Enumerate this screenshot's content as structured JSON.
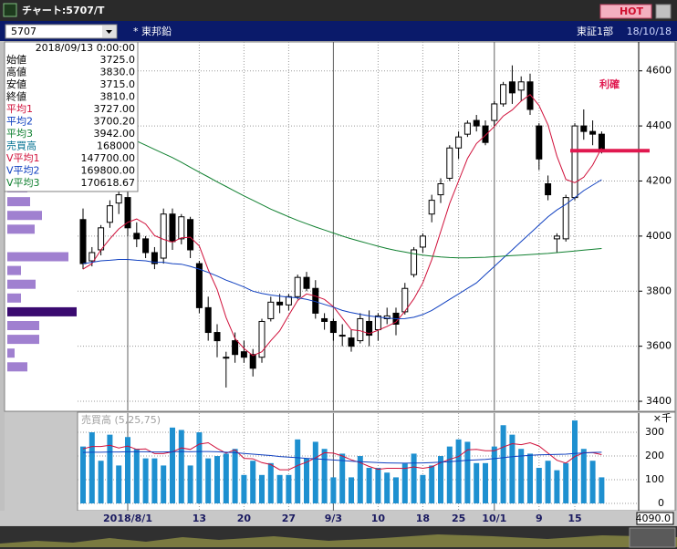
{
  "window": {
    "title": "チャート:5707/T",
    "hot_button": "HOT"
  },
  "toolbar": {
    "code": "5707",
    "name": "* 東邦鉛",
    "market": "東証1部",
    "date": "18/10/18"
  },
  "info_panel": {
    "date": "2018/09/13 0:00:00",
    "rows": [
      {
        "label": "始値",
        "value": "3725.0",
        "color": "#000000"
      },
      {
        "label": "高値",
        "value": "3830.0",
        "color": "#000000"
      },
      {
        "label": "安値",
        "value": "3715.0",
        "color": "#000000"
      },
      {
        "label": "終値",
        "value": "3810.0",
        "color": "#000000"
      },
      {
        "label": "平均1",
        "value": "3727.00",
        "color": "#d0103a"
      },
      {
        "label": "平均2",
        "value": "3700.20",
        "color": "#1040c0"
      },
      {
        "label": "平均3",
        "value": "3942.00",
        "color": "#108030"
      },
      {
        "label": "売買高",
        "value": "168000",
        "color": "#007090"
      },
      {
        "label": "V平均1",
        "value": "147700.00",
        "color": "#d0103a"
      },
      {
        "label": "V平均2",
        "value": "169800.00",
        "color": "#1040c0"
      },
      {
        "label": "V平均3",
        "value": "170618.67",
        "color": "#108030"
      }
    ]
  },
  "chart_data": {
    "type": "candlestick",
    "categories": [
      null,
      null,
      null,
      null,
      null,
      "2018/8/1",
      null,
      null,
      null,
      null,
      null,
      null,
      null,
      "13",
      null,
      null,
      null,
      null,
      "20",
      null,
      null,
      null,
      null,
      "27",
      null,
      null,
      null,
      null,
      "9/3",
      null,
      null,
      null,
      null,
      "10",
      null,
      null,
      null,
      null,
      "18",
      null,
      null,
      null,
      "25",
      null,
      null,
      null,
      "10/1",
      null,
      null,
      null,
      null,
      "9",
      null,
      null,
      null,
      "15",
      null,
      null,
      null
    ],
    "open": [
      4060,
      3910,
      3950,
      4050,
      4120,
      4140,
      4010,
      3990,
      3940,
      3920,
      4080,
      3990,
      4060,
      3900,
      3740,
      3650,
      3560,
      3620,
      3580,
      3570,
      3560,
      3700,
      3760,
      3750,
      3780,
      3850,
      3810,
      3700,
      3690,
      3640,
      3630,
      3620,
      3690,
      3660,
      3700,
      3720,
      3725,
      3860,
      3960,
      4080,
      4150,
      4210,
      4320,
      4370,
      4420,
      4400,
      4420,
      4480,
      4560,
      4530,
      4560,
      4400,
      4190,
      3990,
      3990,
      4140,
      4400,
      4380,
      4370
    ],
    "high": [
      4100,
      3960,
      4040,
      4130,
      4180,
      4190,
      4050,
      4000,
      3960,
      4100,
      4100,
      4080,
      4070,
      3910,
      3780,
      3680,
      3580,
      3650,
      3620,
      3590,
      3700,
      3780,
      3790,
      3790,
      3860,
      3870,
      3840,
      3720,
      3700,
      3680,
      3660,
      3720,
      3730,
      3720,
      3740,
      3740,
      3830,
      3960,
      4010,
      4150,
      4210,
      4330,
      4380,
      4420,
      4440,
      4420,
      4490,
      4560,
      4620,
      4580,
      4590,
      4410,
      4220,
      4010,
      4150,
      4410,
      4460,
      4420,
      4380
    ],
    "low": [
      3880,
      3890,
      3930,
      4030,
      4080,
      4000,
      3960,
      3920,
      3880,
      3900,
      3950,
      3970,
      3920,
      3720,
      3620,
      3560,
      3450,
      3540,
      3540,
      3490,
      3540,
      3690,
      3720,
      3730,
      3770,
      3800,
      3700,
      3660,
      3620,
      3600,
      3580,
      3610,
      3600,
      3620,
      3680,
      3640,
      3715,
      3850,
      3940,
      4050,
      4120,
      4200,
      4280,
      4360,
      4380,
      4330,
      4400,
      4470,
      4480,
      4490,
      4440,
      4240,
      4130,
      3940,
      3980,
      4130,
      4350,
      4330,
      4300
    ],
    "close": [
      3900,
      3940,
      4030,
      4110,
      4150,
      4030,
      3990,
      3940,
      3900,
      4080,
      3980,
      4070,
      3950,
      3740,
      3650,
      3620,
      3560,
      3570,
      3560,
      3520,
      3690,
      3760,
      3750,
      3780,
      3850,
      3810,
      3720,
      3690,
      3650,
      3640,
      3600,
      3700,
      3640,
      3710,
      3710,
      3680,
      3810,
      3950,
      4000,
      4130,
      4190,
      4320,
      4360,
      4410,
      4400,
      4340,
      4480,
      4550,
      4520,
      4560,
      4460,
      4280,
      4150,
      4000,
      4140,
      4400,
      4380,
      4370,
      4310
    ],
    "moving_averages": [
      {
        "color": "#d0103a",
        "values": [
          3880,
          3900,
          3950,
          3990,
          4026,
          4050,
          4062,
          4044,
          4002,
          3988,
          3978,
          3994,
          3996,
          3964,
          3878,
          3806,
          3704,
          3628,
          3592,
          3566,
          3580,
          3620,
          3656,
          3712,
          3766,
          3790,
          3782,
          3770,
          3744,
          3702,
          3660,
          3656,
          3646,
          3658,
          3672,
          3688,
          3727,
          3772,
          3830,
          3914,
          4016,
          4118,
          4200,
          4282,
          4336,
          4366,
          4398,
          4436,
          4458,
          4490,
          4514,
          4474,
          4404,
          4290,
          4206,
          4194,
          4214,
          4258,
          4320
        ]
      },
      {
        "color": "#1040c0",
        "values": [
          3900,
          3905,
          3910,
          3912,
          3915,
          3915,
          3912,
          3910,
          3905,
          3905,
          3900,
          3898,
          3890,
          3880,
          3868,
          3855,
          3840,
          3828,
          3815,
          3800,
          3792,
          3786,
          3782,
          3778,
          3776,
          3770,
          3762,
          3752,
          3742,
          3730,
          3722,
          3716,
          3710,
          3706,
          3702,
          3700,
          3700.2,
          3705,
          3715,
          3730,
          3750,
          3770,
          3790,
          3810,
          3830,
          3860,
          3890,
          3920,
          3950,
          3980,
          4010,
          4040,
          4070,
          4095,
          4115,
          4140,
          4165,
          4185,
          4205
        ]
      },
      {
        "color": "#108030",
        "values": [
          4400,
          4390,
          4385,
          4375,
          4368,
          4360,
          4345,
          4330,
          4315,
          4300,
          4285,
          4268,
          4250,
          4232,
          4215,
          4197,
          4180,
          4163,
          4146,
          4130,
          4114,
          4098,
          4084,
          4070,
          4057,
          4045,
          4033,
          4022,
          4011,
          4000,
          3990,
          3981,
          3972,
          3963,
          3955,
          3948,
          3942,
          3936,
          3931,
          3927,
          3924,
          3922,
          3921,
          3921,
          3922,
          3923,
          3925,
          3927,
          3929,
          3931,
          3933,
          3935,
          3937,
          3940,
          3943,
          3946,
          3949,
          3952,
          3955
        ]
      }
    ],
    "ylim": [
      3367,
      4705
    ],
    "yticks": [
      3400,
      3600,
      3800,
      4000,
      4200,
      4400,
      4600
    ],
    "grid": true,
    "up_color": "#ffffff",
    "down_color": "#000000",
    "annotation": {
      "text": "利確",
      "value": 4310,
      "color": "#e0184f"
    },
    "volume_profile": {
      "prices": [
        4175,
        4125,
        4075,
        4025,
        3925,
        3875,
        3825,
        3775,
        3725,
        3675,
        3625,
        3575,
        3525
      ],
      "values": [
        22,
        25,
        38,
        30,
        67,
        15,
        31,
        15,
        76,
        35,
        35,
        8,
        22
      ],
      "colors": [
        "#a080d0",
        "#a080d0",
        "#a080d0",
        "#a080d0",
        "#a080d0",
        "#a080d0",
        "#a080d0",
        "#a080d0",
        "#3a0a70",
        "#a080d0",
        "#a080d0",
        "#a080d0",
        "#a080d0"
      ]
    },
    "current_value": "4090.0"
  },
  "volume_chart": {
    "type": "bar",
    "legend": "売買高 (5,25,75)",
    "unit": "×千",
    "color": "#1e90d0",
    "values": [
      240,
      300,
      180,
      290,
      160,
      280,
      230,
      190,
      190,
      160,
      320,
      310,
      160,
      300,
      190,
      200,
      210,
      230,
      120,
      180,
      120,
      170,
      120,
      120,
      270,
      190,
      260,
      230,
      110,
      210,
      110,
      200,
      150,
      150,
      130,
      110,
      168,
      210,
      120,
      160,
      200,
      240,
      270,
      260,
      170,
      170,
      240,
      330,
      290,
      230,
      210,
      150,
      180,
      140,
      170,
      350,
      230,
      180,
      110
    ],
    "moving_averages": [
      {
        "color": "#d0103a",
        "values": [
          230,
          240,
          240,
          245,
          234,
          242,
          228,
          230,
          210,
          210,
          218,
          234,
          228,
          250,
          256,
          232,
          212,
          226,
          190,
          188,
          172,
          164,
          142,
          142,
          160,
          174,
          192,
          214,
          212,
          200,
          184,
          172,
          156,
          144,
          148,
          148,
          147.7,
          154,
          148,
          154,
          172,
          186,
          198,
          226,
          228,
          222,
          222,
          238,
          252,
          248,
          256,
          242,
          212,
          182,
          170,
          198,
          214,
          214,
          206
        ]
      },
      {
        "color": "#1040c0",
        "values": [
          215,
          216,
          216,
          217,
          217,
          218,
          218,
          218,
          217,
          217,
          218,
          219,
          218,
          219,
          219,
          218,
          216,
          214,
          211,
          208,
          205,
          202,
          198,
          195,
          193,
          190,
          188,
          186,
          183,
          181,
          178,
          176,
          174,
          172,
          171,
          170,
          169.8,
          170,
          171,
          172,
          174,
          176,
          179,
          182,
          184,
          186,
          189,
          193,
          197,
          200,
          203,
          205,
          206,
          207,
          208,
          211,
          213,
          215,
          216
        ]
      }
    ],
    "ylim": [
      0,
      381
    ],
    "yticks": [
      0,
      100,
      200,
      300
    ]
  }
}
